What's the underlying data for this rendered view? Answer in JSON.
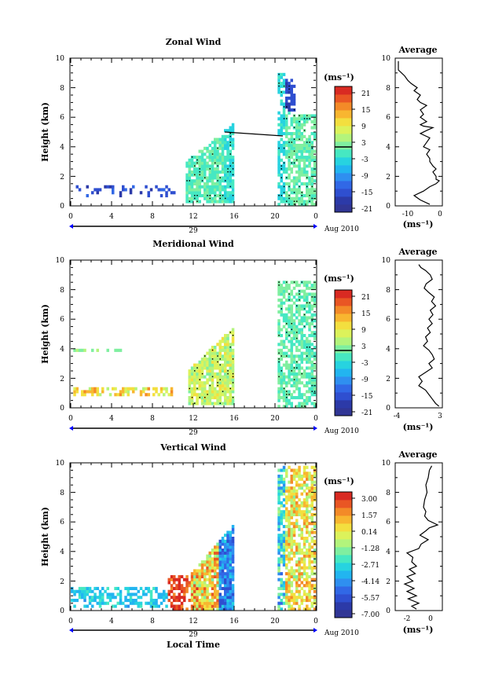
{
  "chart_data": [
    {
      "type": "heatmap",
      "title": "Zonal Wind",
      "ylabel": "Height (km)",
      "xlim": [
        0,
        24
      ],
      "ylim": [
        0,
        10
      ],
      "x_ticks": [
        "0",
        "4",
        "8",
        "12",
        "16",
        "20",
        "0"
      ],
      "y_ticks": [
        "0",
        "2",
        "4",
        "6",
        "8",
        "10"
      ],
      "day_label": "29",
      "date_label": "Aug 2010",
      "colorbar": {
        "unit": "(ms⁻¹)",
        "ticks": [
          "21",
          "15",
          "9",
          "3",
          "-3",
          "-9",
          "-15",
          "-21"
        ],
        "range": [
          -24,
          24
        ]
      },
      "average_profile": {
        "title": "Average",
        "xlabel": "(ms⁻¹)",
        "x_ticks": [
          "-10",
          "0"
        ],
        "xlim": [
          -14,
          1
        ],
        "y_ticks": [
          "0",
          "2",
          "4",
          "6",
          "8",
          "10"
        ],
        "height": [
          0.1,
          0.4,
          0.7,
          0.9,
          1.0,
          1.3,
          1.5,
          1.7,
          1.8,
          2.0,
          2.3,
          2.5,
          2.7,
          3.0,
          3.2,
          3.5,
          3.8,
          4.0,
          4.3,
          4.6,
          4.9,
          5.1,
          5.3,
          5.4,
          5.5,
          5.7,
          6.0,
          6.2,
          6.5,
          6.8,
          7.0,
          7.2,
          7.5,
          7.8,
          8.0,
          8.3,
          8.5,
          8.8,
          9.0,
          9.2,
          9.5,
          9.8
        ],
        "value": [
          -3,
          -6,
          -8,
          -6,
          -5,
          -3,
          -1,
          0,
          -1,
          -1,
          -2,
          -1,
          -2,
          -3,
          -3,
          -4,
          -3,
          -5,
          -4,
          -3,
          -6,
          -4,
          -2,
          -5,
          -6,
          -4,
          -6,
          -5,
          -6,
          -4,
          -6,
          -7,
          -6,
          -8,
          -7,
          -9,
          -10,
          -11,
          -12,
          -13,
          -13,
          -13
        ]
      }
    },
    {
      "type": "heatmap",
      "title": "Meridional Wind",
      "ylabel": "Height (km)",
      "xlim": [
        0,
        24
      ],
      "ylim": [
        0,
        10
      ],
      "x_ticks": [
        "0",
        "4",
        "8",
        "12",
        "16",
        "20",
        "0"
      ],
      "y_ticks": [
        "0",
        "2",
        "4",
        "6",
        "8",
        "10"
      ],
      "day_label": "29",
      "date_label": "Aug 2010",
      "colorbar": {
        "unit": "(ms⁻¹)",
        "ticks": [
          "21",
          "15",
          "9",
          "3",
          "-3",
          "-9",
          "-15",
          "-21"
        ],
        "range": [
          -24,
          24
        ]
      },
      "average_profile": {
        "title": "Average",
        "xlabel": "(ms⁻¹)",
        "x_ticks": [
          "-4",
          "3"
        ],
        "xlim": [
          -4,
          3
        ],
        "y_ticks": [
          "0",
          "2",
          "4",
          "6",
          "8",
          "10"
        ],
        "height": [
          0.1,
          0.3,
          0.6,
          0.9,
          1.2,
          1.5,
          1.8,
          2.1,
          2.4,
          2.7,
          3.0,
          3.3,
          3.6,
          3.9,
          4.2,
          4.5,
          4.8,
          5.1,
          5.4,
          5.7,
          6.0,
          6.3,
          6.6,
          6.9,
          7.2,
          7.5,
          7.8,
          8.1,
          8.4,
          8.7,
          9.0,
          9.3,
          9.5,
          9.7
        ],
        "value": [
          2.5,
          2.0,
          1.5,
          1.0,
          0.5,
          -0.5,
          0,
          -0.5,
          0.5,
          1.5,
          1.0,
          1.8,
          1.5,
          1.0,
          0.2,
          0.8,
          0.5,
          1.2,
          0.8,
          1.5,
          1.0,
          1.6,
          1.2,
          2.0,
          1.4,
          1.8,
          1.0,
          0.3,
          0.6,
          1.5,
          1.2,
          0.5,
          -0.2,
          -0.5
        ]
      }
    },
    {
      "type": "heatmap",
      "title": "Vertical Wind",
      "ylabel": "Height (km)",
      "xlabel": "Local Time",
      "xlim": [
        0,
        24
      ],
      "ylim": [
        0,
        10
      ],
      "x_ticks": [
        "0",
        "4",
        "8",
        "12",
        "16",
        "20",
        "0"
      ],
      "y_ticks": [
        "0",
        "2",
        "4",
        "6",
        "8",
        "10"
      ],
      "day_label": "29",
      "date_label": "Aug 2010",
      "colorbar": {
        "unit": "(ms⁻¹)",
        "ticks": [
          "3.00",
          "1.57",
          "0.14",
          "-1.28",
          "-2.71",
          "-4.14",
          "-5.57",
          "-7.00"
        ],
        "range": [
          -7.7,
          3.7
        ]
      },
      "average_profile": {
        "title": "Average",
        "xlabel": "(ms⁻¹)",
        "x_ticks": [
          "-2",
          "0"
        ],
        "xlim": [
          -3,
          1
        ],
        "y_ticks": [
          "0",
          "2",
          "4",
          "6",
          "8",
          "10"
        ],
        "height": [
          0.1,
          0.3,
          0.5,
          0.8,
          1.0,
          1.3,
          1.5,
          1.8,
          2.0,
          2.3,
          2.5,
          2.8,
          3.0,
          3.3,
          3.6,
          3.9,
          4.2,
          4.5,
          4.8,
          5.1,
          5.4,
          5.6,
          5.8,
          6.1,
          6.4,
          6.7,
          7.0,
          7.5,
          8.0,
          8.5,
          9.0,
          9.5,
          9.8
        ],
        "value": [
          -1.2,
          -1.6,
          -1.0,
          -1.9,
          -1.2,
          -2.0,
          -1.4,
          -2.2,
          -1.5,
          -2.0,
          -1.3,
          -1.8,
          -1.2,
          -1.6,
          -1.5,
          -2.0,
          -1.0,
          -0.8,
          -0.2,
          -0.9,
          -0.4,
          -0.1,
          0.6,
          -0.2,
          -0.5,
          -0.4,
          -0.6,
          -0.5,
          -0.3,
          -0.4,
          -0.2,
          -0.1,
          0.1
        ]
      }
    }
  ]
}
